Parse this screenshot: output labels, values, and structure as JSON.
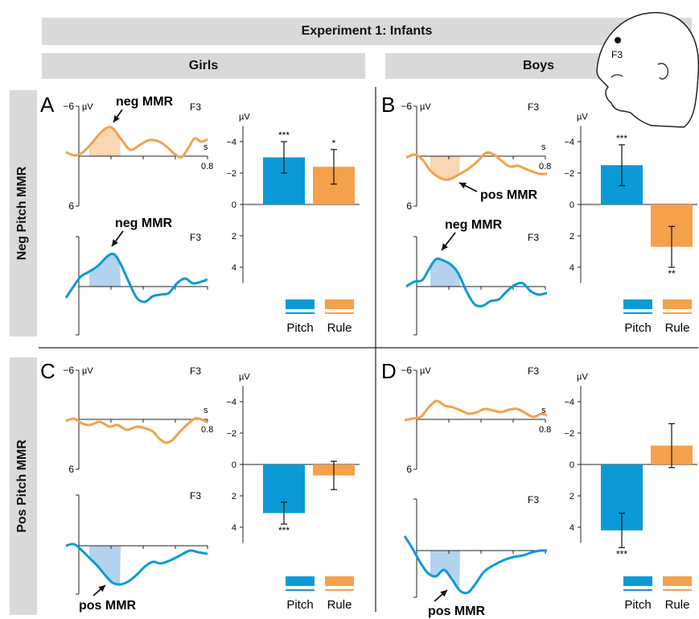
{
  "title": "Experiment 1: Infants",
  "columns": [
    "Girls",
    "Boys"
  ],
  "rows": [
    "Neg Pitch MMR",
    "Pos Pitch MMR"
  ],
  "colors": {
    "pitch": "#0b9ad6",
    "rule": "#f5a04a",
    "pitch_fill": "#b3d3ee",
    "rule_fill": "#f9d6b4",
    "band": "#d9d9d9"
  },
  "head_electrode": "F3",
  "erp_axis": {
    "unit": "µV",
    "time_unit": "s",
    "y_top": "−6",
    "y_bottom": "6",
    "x_end": "0.8",
    "electrode": "F3"
  },
  "bar_axis": {
    "unit": "µV",
    "ticks": [
      "−4",
      "−2",
      "0",
      "2",
      "4"
    ]
  },
  "legend": {
    "pitch": "Pitch",
    "rule": "Rule"
  },
  "chart_data": [
    {
      "panel": "A",
      "type": "bar",
      "categories": [
        "Pitch",
        "Rule"
      ],
      "values": [
        -3.0,
        -2.4
      ],
      "errors": [
        1.0,
        1.1
      ],
      "significance": [
        "***",
        "*"
      ],
      "ylim": [
        5,
        -5
      ],
      "annotations": {
        "rule_erp": "neg MMR",
        "pitch_erp": "neg MMR"
      }
    },
    {
      "panel": "B",
      "type": "bar",
      "categories": [
        "Pitch",
        "Rule"
      ],
      "values": [
        -2.5,
        2.7
      ],
      "errors": [
        1.3,
        1.3
      ],
      "significance": [
        "***",
        "**"
      ],
      "ylim": [
        5,
        -5
      ],
      "annotations": {
        "rule_erp": "pos MMR",
        "pitch_erp": "neg MMR"
      }
    },
    {
      "panel": "C",
      "type": "bar",
      "categories": [
        "Pitch",
        "Rule"
      ],
      "values": [
        3.1,
        0.7
      ],
      "errors": [
        0.7,
        0.9
      ],
      "significance": [
        "***",
        ""
      ],
      "ylim": [
        5,
        -5
      ],
      "annotations": {
        "pitch_erp": "pos MMR"
      }
    },
    {
      "panel": "D",
      "type": "bar",
      "categories": [
        "Pitch",
        "Rule"
      ],
      "values": [
        4.2,
        -1.2
      ],
      "errors": [
        1.1,
        1.4
      ],
      "significance": [
        "***",
        ""
      ],
      "ylim": [
        5,
        -5
      ],
      "annotations": {
        "pitch_erp": "pos MMR"
      }
    }
  ]
}
